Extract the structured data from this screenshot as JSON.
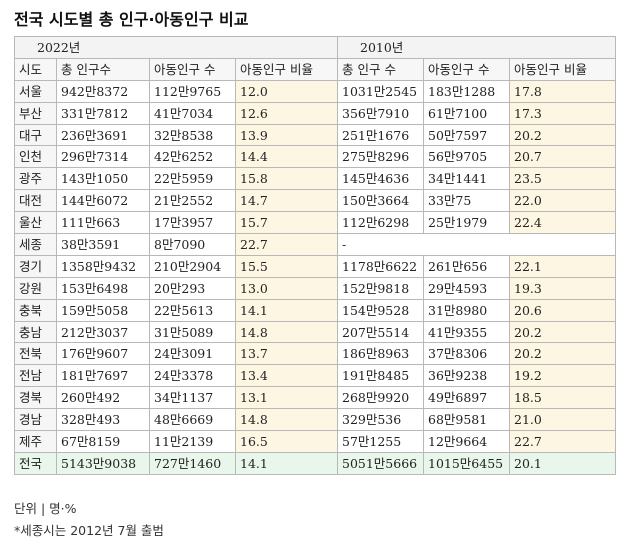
{
  "title": "전국 시도별 총 인구·아동인구 비교",
  "year_headers": [
    "2022년",
    "2010년"
  ],
  "column_headers": [
    "시도",
    "총 인구수",
    "아동인구 수",
    "아동인구 비율",
    "총 인구 수",
    "아동인구 수",
    "아동인구 비율"
  ],
  "rows": [
    {
      "region": "서울",
      "total2022": "942만8372",
      "child2022": "112만9765",
      "ratio2022": "12.0",
      "total2010": "1031만2545",
      "child2010": "183만1288",
      "ratio2010": "17.8"
    },
    {
      "region": "부산",
      "total2022": "331만7812",
      "child2022": "41만7034",
      "ratio2022": "12.6",
      "total2010": "356만7910",
      "child2010": "61만7100",
      "ratio2010": "17.3"
    },
    {
      "region": "대구",
      "total2022": "236만3691",
      "child2022": "32만8538",
      "ratio2022": "13.9",
      "total2010": "251만1676",
      "child2010": "50만7597",
      "ratio2010": "20.2"
    },
    {
      "region": "인천",
      "total2022": "296만7314",
      "child2022": "42만6252",
      "ratio2022": "14.4",
      "total2010": "275만8296",
      "child2010": "56만9705",
      "ratio2010": "20.7"
    },
    {
      "region": "광주",
      "total2022": "143만1050",
      "child2022": "22만5959",
      "ratio2022": "15.8",
      "total2010": "145만4636",
      "child2010": "34만1441",
      "ratio2010": "23.5"
    },
    {
      "region": "대전",
      "total2022": "144만6072",
      "child2022": "21만2552",
      "ratio2022": "14.7",
      "total2010": "150만3664",
      "child2010": "33만75",
      "ratio2010": "22.0"
    },
    {
      "region": "울산",
      "total2022": "111만663",
      "child2022": "17만3957",
      "ratio2022": "15.7",
      "total2010": "112만6298",
      "child2010": "25만1979",
      "ratio2010": "22.4"
    },
    {
      "region": "세종",
      "total2022": "38만3591",
      "child2022": "8만7090",
      "ratio2022": "22.7",
      "total2010": "-",
      "child2010": "",
      "ratio2010": ""
    },
    {
      "region": "경기",
      "total2022": "1358만9432",
      "child2022": "210만2904",
      "ratio2022": "15.5",
      "total2010": "1178만6622",
      "child2010": "261만656",
      "ratio2010": "22.1"
    },
    {
      "region": "강원",
      "total2022": "153만6498",
      "child2022": "20만293",
      "ratio2022": "13.0",
      "total2010": "152만9818",
      "child2010": "29만4593",
      "ratio2010": "19.3"
    },
    {
      "region": "충북",
      "total2022": "159만5058",
      "child2022": "22만5613",
      "ratio2022": "14.1",
      "total2010": "154만9528",
      "child2010": "31만8980",
      "ratio2010": "20.6"
    },
    {
      "region": "충남",
      "total2022": "212만3037",
      "child2022": "31만5089",
      "ratio2022": "14.8",
      "total2010": "207만5514",
      "child2010": "41만9355",
      "ratio2010": "20.2"
    },
    {
      "region": "전북",
      "total2022": "176만9607",
      "child2022": "24만3091",
      "ratio2022": "13.7",
      "total2010": "186만8963",
      "child2010": "37만8306",
      "ratio2010": "20.2"
    },
    {
      "region": "전남",
      "total2022": "181만7697",
      "child2022": "24만3378",
      "ratio2022": "13.4",
      "total2010": "191만8485",
      "child2010": "36만9238",
      "ratio2010": "19.2"
    },
    {
      "region": "경북",
      "total2022": "260만492",
      "child2022": "34만1137",
      "ratio2022": "13.1",
      "total2010": "268만9920",
      "child2010": "49만6897",
      "ratio2010": "18.5"
    },
    {
      "region": "경남",
      "total2022": "328만493",
      "child2022": "48만6669",
      "ratio2022": "14.8",
      "total2010": "329만536",
      "child2010": "68만9581",
      "ratio2010": "21.0"
    },
    {
      "region": "제주",
      "total2022": "67만8159",
      "child2022": "11만2139",
      "ratio2022": "16.5",
      "total2010": "57만1255",
      "child2010": "12만9664",
      "ratio2010": "22.7"
    }
  ],
  "total_row": {
    "region": "전국",
    "total2022": "5143만9038",
    "child2022": "727만1460",
    "ratio2022": "14.1",
    "total2010": "5051만5666",
    "child2010": "1015만6455",
    "ratio2010": "20.1"
  },
  "unit_note": "단위 | 명·%",
  "footnote": "*세종시는 2012년 7월 출범",
  "colors": {
    "highlight": "#fdf6e3",
    "total_row": "#e9f6ec",
    "header": "#f3f3f3",
    "border": "#b8b8b8"
  }
}
